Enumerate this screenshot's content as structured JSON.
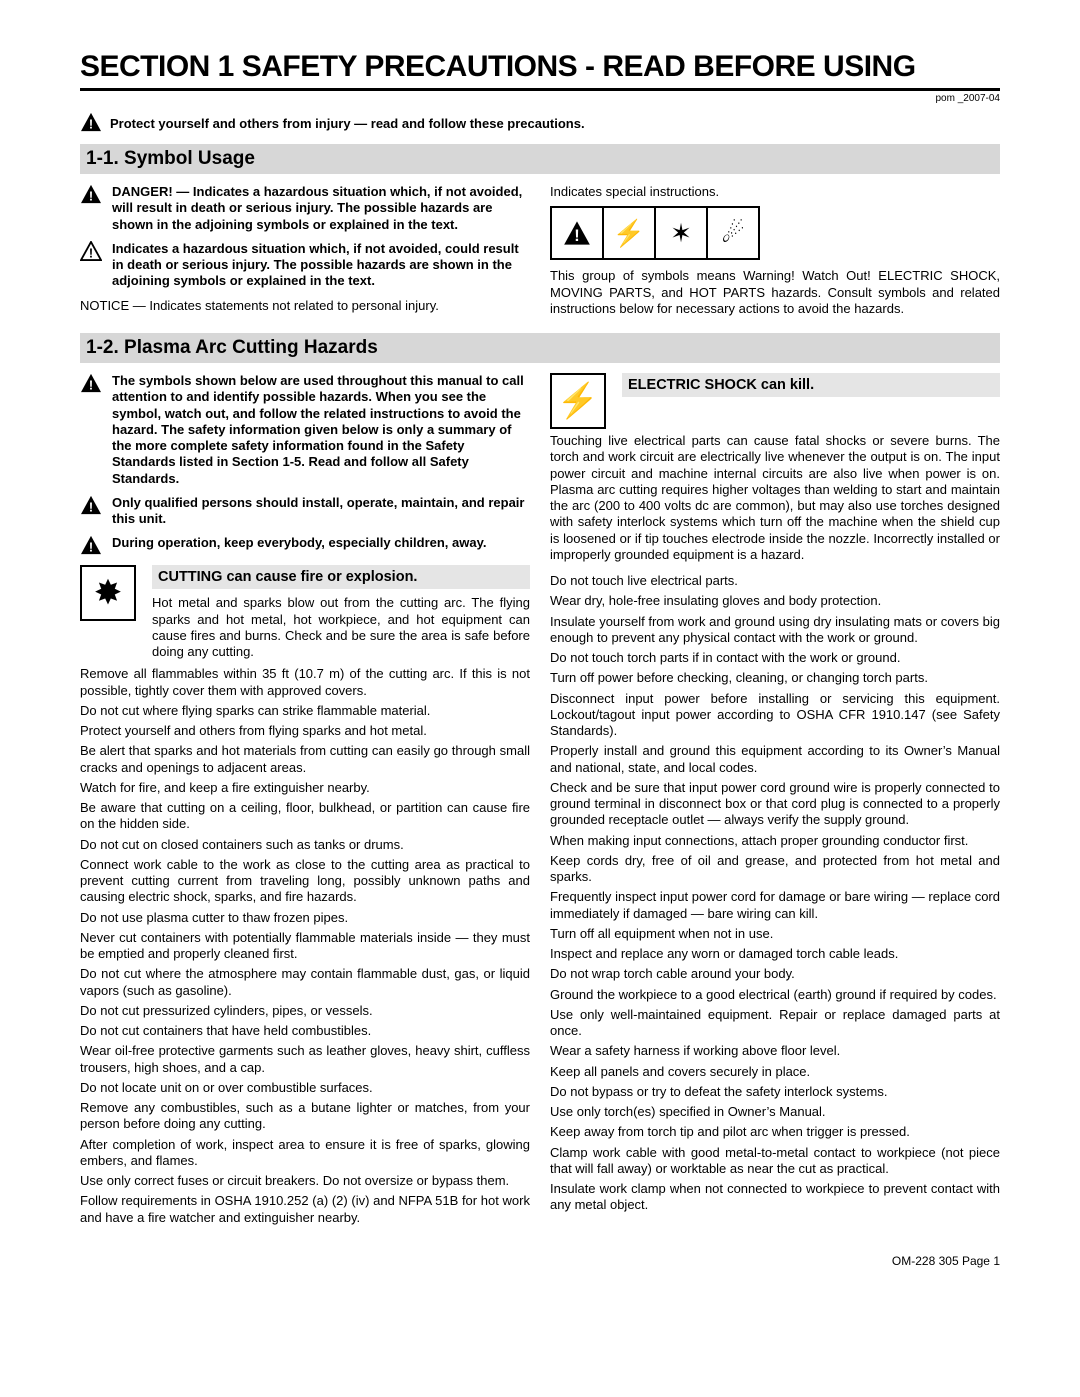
{
  "header": {
    "title": "SECTION 1   SAFETY PRECAUTIONS - READ BEFORE USING",
    "docref": "pom _2007‐04",
    "intro": "Protect yourself and others from injury — read and follow these precautions."
  },
  "s11": {
    "heading": "1-1.   Symbol Usage",
    "danger": "DANGER! — Indicates a hazardous situation which, if not avoided, will result in death or serious injury. The possible hazards are shown in the adjoining symbols or explained in the text.",
    "warn": "Indicates a hazardous situation which, if not avoided, could result in death or serious injury. The possible hazards are shown in the adjoining symbols or explained in the text.",
    "notice_label": "NOTICE",
    "notice": " — Indicates statements not related to personal injury.",
    "special": "Indicates special instructions.",
    "groupnote": "This group of symbols means Warning! Watch Out! ELECTRIC SHOCK, MOVING PARTS, and HOT PARTS hazards. Consult symbols and related instructions below for necessary actions to avoid the hazards."
  },
  "s12": {
    "heading": "1-2.   Plasma Arc Cutting Hazards",
    "w1": "The symbols shown below are used throughout this manual to call attention to and identify possible hazards. When you see the symbol, watch out, and follow the related instructions to avoid the hazard. The safety information given below is only a summary of the more complete safety information found in the Safety Standards listed in Section 1-5. Read and follow all Safety Standards.",
    "w2": "Only qualified persons should install, operate, maintain, and repair this unit.",
    "w3": "During operation, keep everybody, especially children, away.",
    "cut_title": "CUTTING can cause fire or explosion.",
    "cut_intro": "Hot metal and sparks blow out from the cutting arc. The flying sparks and hot metal, hot workpiece, and hot equipment can cause fires and burns. Check and be sure the area is safe before doing any cutting.",
    "cut_items": [
      "Remove all flammables within 35 ft (10.7 m) of the cutting arc. If this is not possible, tightly cover them with approved covers.",
      "Do not cut where flying sparks can strike flammable material.",
      "Protect yourself and others from flying sparks and hot metal.",
      "Be alert that sparks and hot materials from cutting can easily go through small cracks and openings to adjacent areas.",
      "Watch for fire, and keep a fire extinguisher nearby.",
      "Be aware that cutting on a ceiling, floor, bulkhead, or partition can cause fire on the hidden side.",
      "Do not cut on closed containers such as tanks or drums.",
      "Connect work cable to the work as close to the cutting area as practical to prevent cutting current from traveling long, possibly unknown paths and causing electric shock, sparks, and fire hazards.",
      "Do not use plasma cutter to thaw frozen pipes.",
      "Never cut containers with potentially flammable materials inside — they must be emptied and properly cleaned first.",
      "Do not cut where the atmosphere may contain flammable dust, gas, or liquid vapors (such as gasoline).",
      "Do not cut pressurized cylinders, pipes, or vessels.",
      "Do not cut containers that have held combustibles.",
      "Wear oil-free protective garments such as leather gloves, heavy shirt, cuffless trousers, high shoes, and a cap.",
      "Do not locate unit on or over combustible surfaces.",
      "Remove any combustibles, such as a butane lighter or matches, from your person before doing any cutting.",
      "After completion of work, inspect area to ensure it is free of sparks, glowing embers, and flames.",
      "Use only correct fuses or circuit breakers. Do not oversize or bypass them.",
      "Follow requirements in OSHA 1910.252 (a) (2) (iv) and NFPA 51B for hot work and have a fire watcher and extinguisher nearby."
    ],
    "shock_title": "ELECTRIC SHOCK can kill.",
    "shock_intro": "Touching live electrical parts can cause fatal shocks or severe burns. The torch and work circuit are electrically live whenever the output is on. The input power circuit and machine internal circuits are also live when power is on. Plasma arc cutting requires higher voltages than welding to start and maintain the arc (200 to 400 volts dc are common), but may also use torches designed with safety interlock systems which turn off the machine when the shield cup is loosened or if tip touches electrode inside the nozzle. Incorrectly installed or improperly grounded equipment is a hazard.",
    "shock_items": [
      "Do not touch live electrical parts.",
      "Wear dry, hole-free insulating gloves and body protection.",
      "Insulate yourself from work and ground using dry insulating mats or covers big enough to prevent any physical contact with the work or ground.",
      "Do not touch torch parts if in contact with the work or ground.",
      "Turn off power before checking, cleaning, or changing torch parts.",
      "Disconnect input power before installing or servicing this equipment. Lockout/tagout input power according to OSHA CFR 1910.147 (see Safety Standards).",
      "Properly install and ground this equipment according to its Owner’s Manual and national, state, and local codes.",
      "Check and be sure that input power cord ground wire is properly connected to ground terminal in disconnect box or that cord plug is connected to a properly grounded receptacle outlet — always verify the supply ground.",
      "When making input connections, attach proper grounding conductor first.",
      "Keep cords dry, free of oil and grease, and protected from hot metal and sparks.",
      "Frequently inspect input power cord for damage or bare wiring — replace cord immediately if damaged — bare wiring can kill.",
      "Turn off all equipment when not in use.",
      "Inspect and replace any worn or damaged torch cable leads.",
      "Do not wrap torch cable around your body.",
      "Ground the workpiece to a good electrical (earth) ground if required by codes.",
      "Use only well-maintained equipment. Repair or replace damaged parts at once.",
      "Wear a safety harness if working above floor level.",
      "Keep all panels and covers securely in place.",
      "Do not bypass or try to defeat the safety interlock systems.",
      "Use only torch(es) specified in Owner’s Manual.",
      "Keep away from torch tip and pilot arc when trigger is pressed.",
      "Clamp work cable with good metal-to-metal contact to workpiece (not piece that will fall away) or worktable as near the cut as practical.",
      "Insulate work clamp when not connected to workpiece to prevent contact with any metal object."
    ]
  },
  "footer": "OM-228 305 Page 1",
  "style": {
    "bg": "#ffffff",
    "heading_bg": "#d7d7d7",
    "haz_title_bg": "#e5e5e5",
    "text_color": "#000000",
    "body_font_size_pt": 10,
    "title_font_size_pt": 22,
    "subheading_font_size_pt": 14
  }
}
